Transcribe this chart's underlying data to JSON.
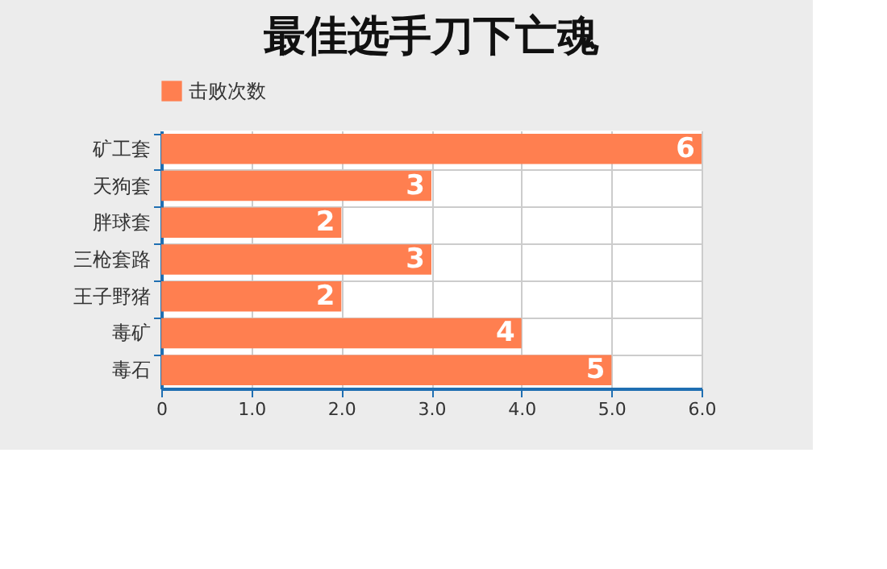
{
  "chart_data": {
    "type": "bar",
    "orientation": "horizontal",
    "title": "最佳选手刀下亡魂",
    "categories": [
      "矿工套",
      "天狗套",
      "胖球套",
      "三枪套路",
      "王子野猪",
      "毒矿",
      "毒石"
    ],
    "series": [
      {
        "name": "击败次数",
        "color": "#ff7f50",
        "values": [
          6,
          3,
          2,
          3,
          2,
          4,
          5
        ]
      }
    ],
    "xlim": [
      0,
      6
    ],
    "xticks": [
      0,
      {
        "value": 1,
        "label": "1.0"
      },
      {
        "value": 2,
        "label": "2.0"
      },
      {
        "value": 3,
        "label": "3.0"
      },
      {
        "value": 4,
        "label": "4.0"
      },
      {
        "value": 5,
        "label": "5.0"
      },
      {
        "value": 6,
        "label": "6.0"
      }
    ],
    "data_labels": true,
    "grid": true,
    "legend": "top"
  }
}
